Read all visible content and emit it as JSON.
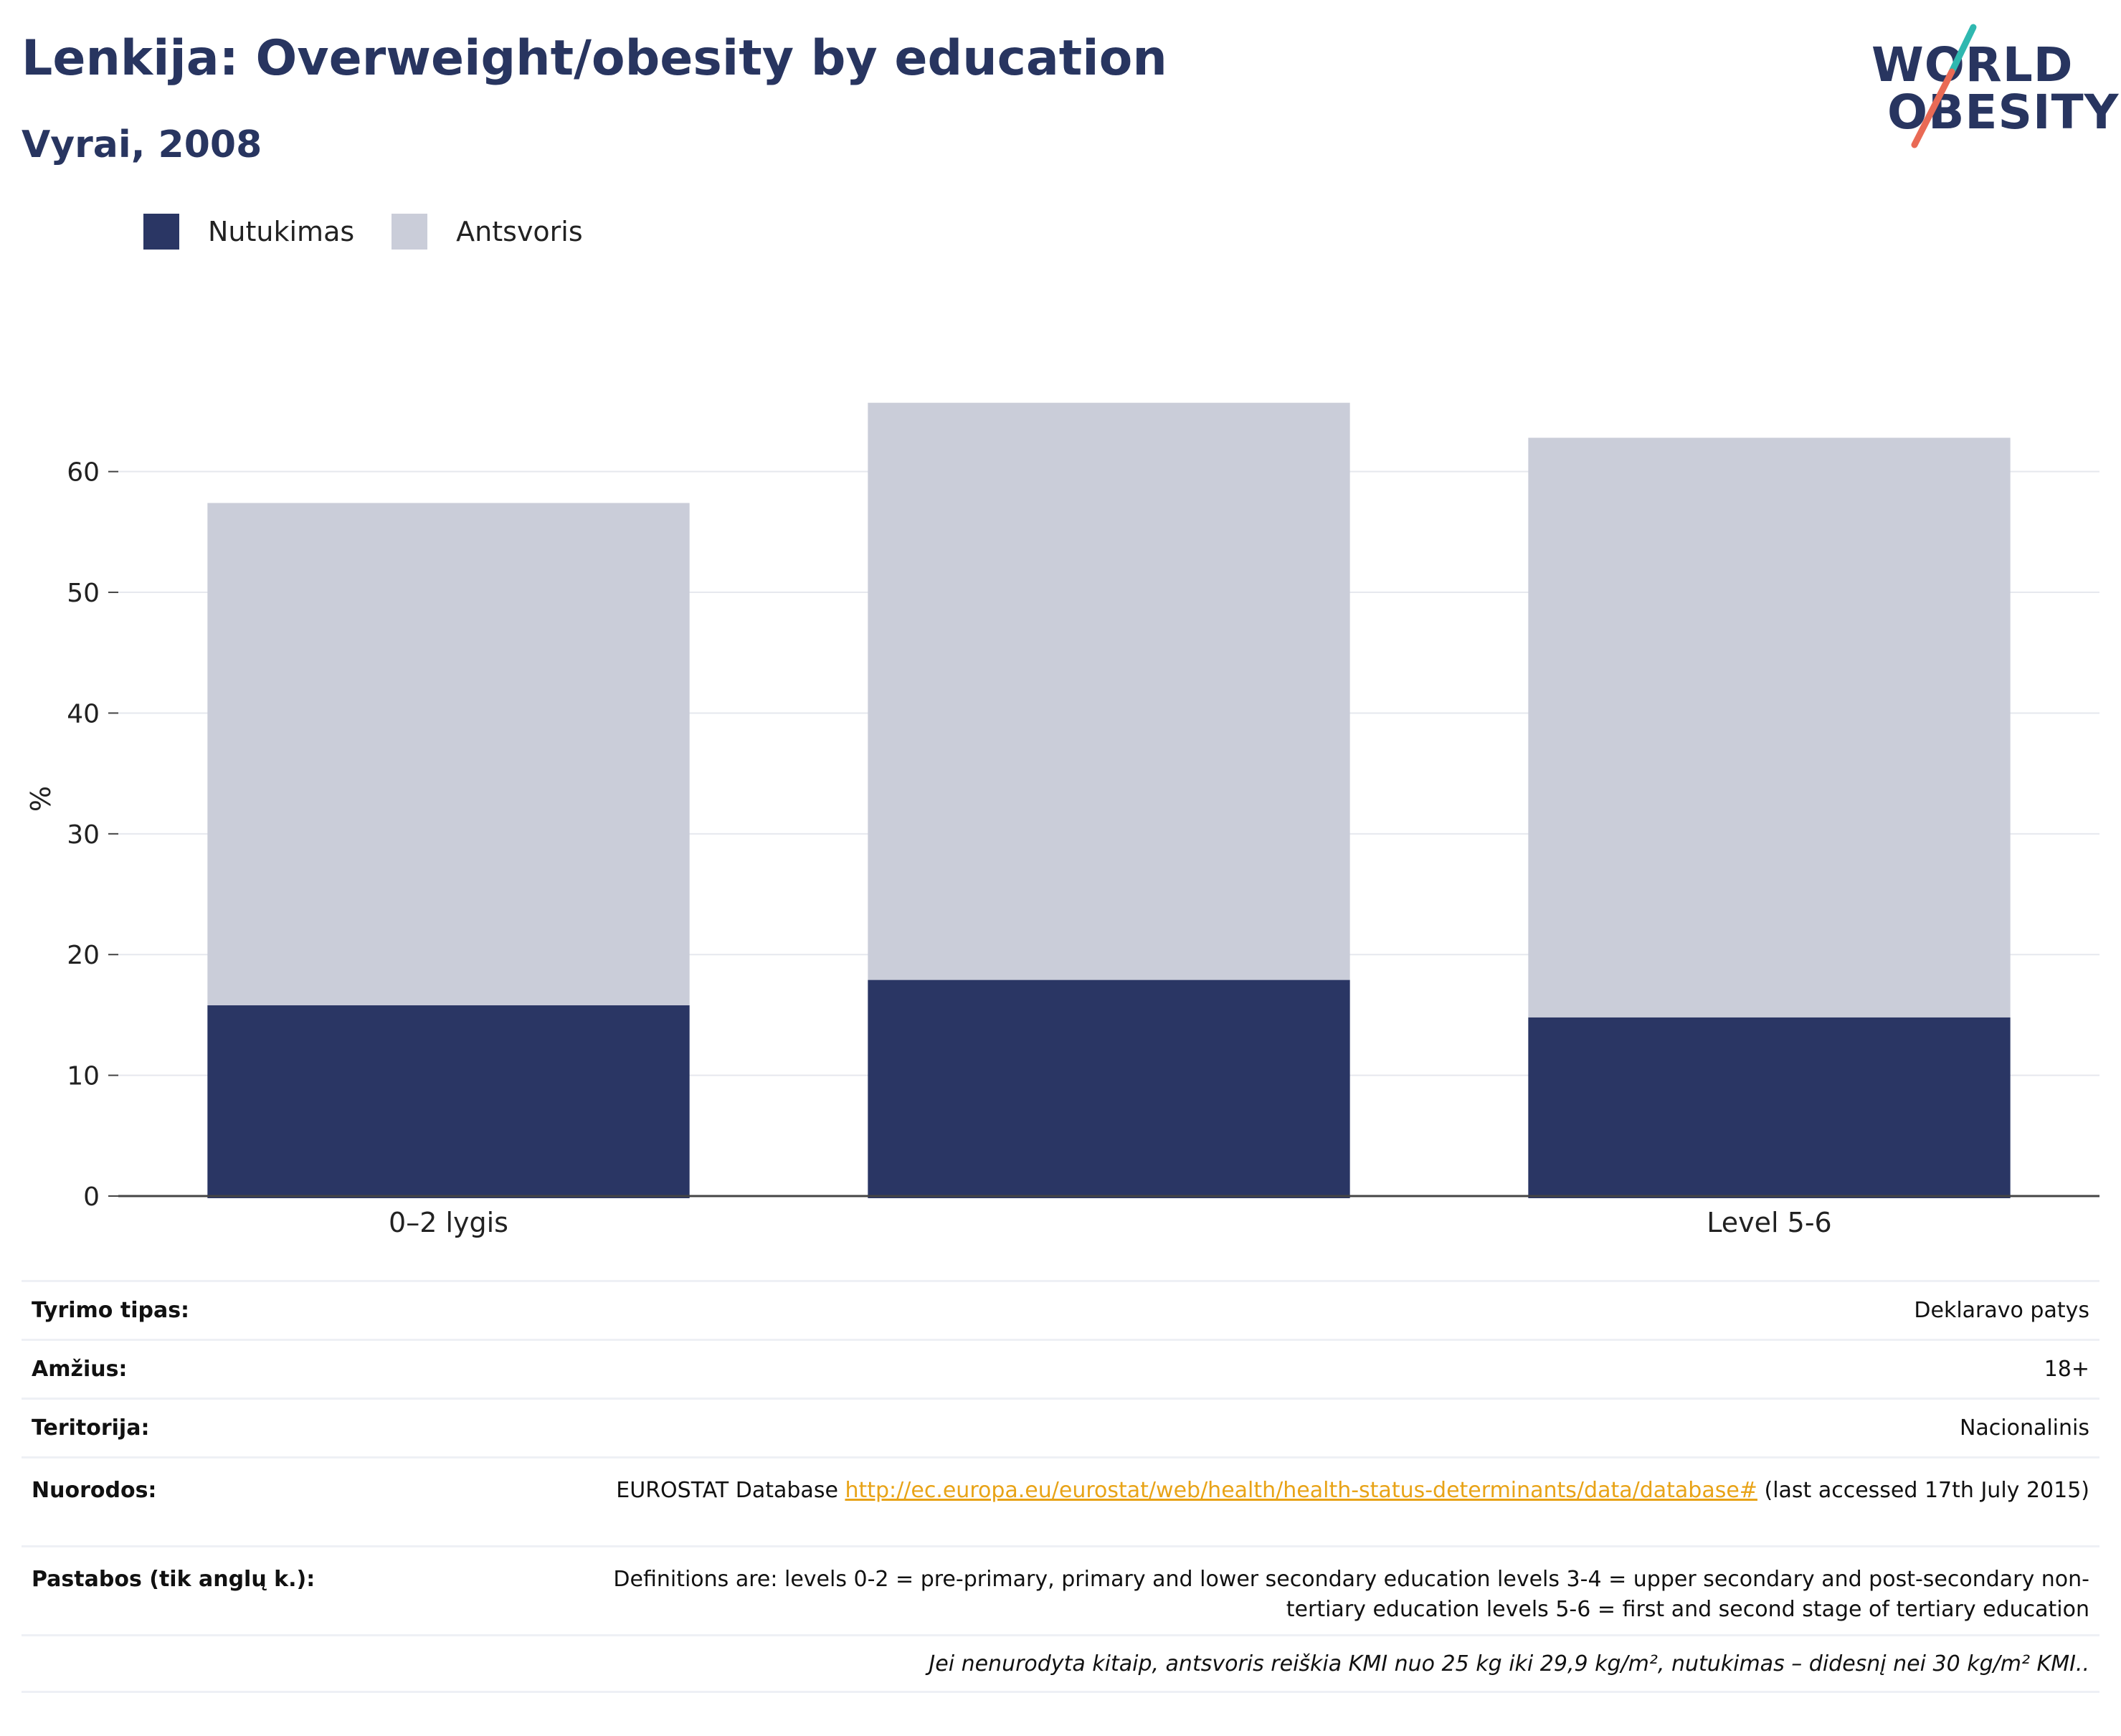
{
  "header": {
    "title": "Lenkija: Overweight/obesity by education",
    "subtitle": "Vyrai, 2008"
  },
  "logo": {
    "line1": "WORLD",
    "line2": "OBESITY"
  },
  "colors": {
    "obesity": "#2a3664",
    "overweight": "#cacdd9",
    "title": "#283560",
    "link": "#e8a317",
    "logo_teal": "#2fb8b0",
    "logo_coral": "#e96a55"
  },
  "legend": [
    {
      "label": "Nutukimas",
      "color": "#2a3664"
    },
    {
      "label": "Antsvoris",
      "color": "#cacdd9"
    }
  ],
  "chart_data": {
    "type": "bar",
    "stacked": true,
    "categories": [
      "0–2 lygis",
      "",
      "Level 5-6"
    ],
    "series": [
      {
        "name": "Nutukimas",
        "values": [
          15.8,
          17.9,
          14.8
        ]
      },
      {
        "name": "Antsvoris",
        "values": [
          41.6,
          47.8,
          48.0
        ]
      }
    ],
    "ylabel": "%",
    "ylim": [
      0,
      65.8
    ],
    "yticks": [
      0,
      10,
      20,
      30,
      40,
      50,
      60
    ],
    "grid": true,
    "legend_position": "top-left"
  },
  "info": {
    "survey_label": "Tyrimo tipas:",
    "survey_value": "Deklaravo patys",
    "age_label": "Amžius:",
    "age_value": "18+",
    "territory_label": "Teritorija:",
    "territory_value": "Nacionalinis",
    "refs_label": "Nuorodos:",
    "refs_prefix": "EUROSTAT Database ",
    "refs_link": "http://ec.europa.eu/eurostat/web/health/health-status-determinants/data/database#",
    "refs_suffix": " (last accessed 17th July 2015)",
    "notes_label": "Pastabos (tik anglų k.):",
    "notes_value": "Definitions are: levels 0-2 = pre-primary, primary and lower secondary education levels 3-4 = upper secondary and post-secondary non-tertiary education levels 5-6 = first and second stage of tertiary education",
    "footnote": "Jei nenurodyta kitaip, antsvoris reiškia KMI nuo 25 kg iki 29,9 kg/m², nutukimas – didesnį nei 30 kg/m² KMI.."
  }
}
